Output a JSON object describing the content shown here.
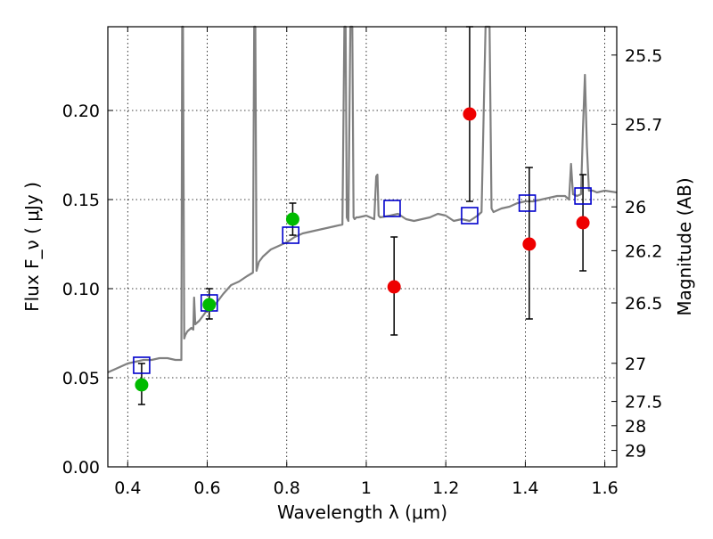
{
  "chart_data": {
    "type": "scatter",
    "xlabel": "Wavelength  λ (μm)",
    "ylabel": "Flux  F_ν  ( μJy )",
    "ylabel_right": "Magnitude (AB)",
    "xlim": [
      0.35,
      1.63
    ],
    "ylim": [
      0.0,
      0.247
    ],
    "grid": true,
    "xticks": [
      0.4,
      0.6,
      0.8,
      1.0,
      1.2,
      1.4,
      1.6
    ],
    "xtick_labels": [
      "0.4",
      "0.6",
      "0.8",
      "1",
      "1.2",
      "1.4",
      "1.6"
    ],
    "yticks": [
      0.0,
      0.05,
      0.1,
      0.15,
      0.2
    ],
    "ytick_labels": [
      "0.00",
      "0.05",
      "0.10",
      "0.15",
      "0.20"
    ],
    "right_ticks": [
      {
        "label": "25.5",
        "flux": 0.2311
      },
      {
        "label": "25.7",
        "flux": 0.1923
      },
      {
        "label": "26",
        "flux": 0.1459
      },
      {
        "label": "26.2",
        "flux": 0.1213
      },
      {
        "label": "26.5",
        "flux": 0.092
      },
      {
        "label": "27",
        "flux": 0.0581
      },
      {
        "label": "27.5",
        "flux": 0.0367
      },
      {
        "label": "28",
        "flux": 0.0231
      },
      {
        "label": "29",
        "flux": 0.0092
      }
    ],
    "colors": {
      "spectrum": "#808080",
      "model": "#0000cc",
      "green": "#00bb00",
      "red": "#ee0000",
      "errorbar": "#000000"
    },
    "series": [
      {
        "kind": "spectrum",
        "x": [
          0.35,
          0.37,
          0.39,
          0.4,
          0.42,
          0.44,
          0.46,
          0.48,
          0.5,
          0.52,
          0.53,
          0.535,
          0.537,
          0.539,
          0.542,
          0.545,
          0.55,
          0.56,
          0.565,
          0.567,
          0.57,
          0.58,
          0.59,
          0.6,
          0.62,
          0.64,
          0.66,
          0.68,
          0.7,
          0.715,
          0.718,
          0.721,
          0.724,
          0.73,
          0.74,
          0.76,
          0.78,
          0.8,
          0.82,
          0.84,
          0.86,
          0.88,
          0.9,
          0.92,
          0.94,
          0.945,
          0.948,
          0.951,
          0.955,
          0.96,
          0.965,
          0.968,
          0.971,
          0.975,
          0.98,
          1.0,
          1.02,
          1.025,
          1.028,
          1.031,
          1.035,
          1.06,
          1.08,
          1.1,
          1.12,
          1.14,
          1.16,
          1.18,
          1.2,
          1.22,
          1.24,
          1.26,
          1.28,
          1.29,
          1.3,
          1.305,
          1.31,
          1.315,
          1.32,
          1.34,
          1.36,
          1.38,
          1.4,
          1.42,
          1.44,
          1.46,
          1.48,
          1.5,
          1.51,
          1.515,
          1.52,
          1.53,
          1.54,
          1.545,
          1.55,
          1.555,
          1.56,
          1.57,
          1.58,
          1.6,
          1.63
        ],
        "y": [
          0.053,
          0.055,
          0.057,
          0.058,
          0.059,
          0.06,
          0.06,
          0.061,
          0.061,
          0.06,
          0.06,
          0.06,
          0.25,
          0.25,
          0.072,
          0.074,
          0.076,
          0.078,
          0.077,
          0.095,
          0.08,
          0.082,
          0.085,
          0.088,
          0.091,
          0.097,
          0.102,
          0.104,
          0.107,
          0.109,
          0.25,
          0.25,
          0.11,
          0.115,
          0.118,
          0.122,
          0.124,
          0.126,
          0.129,
          0.131,
          0.132,
          0.133,
          0.134,
          0.135,
          0.136,
          0.25,
          0.25,
          0.14,
          0.138,
          0.25,
          0.25,
          0.14,
          0.139,
          0.14,
          0.14,
          0.141,
          0.139,
          0.163,
          0.164,
          0.141,
          0.14,
          0.141,
          0.142,
          0.139,
          0.138,
          0.139,
          0.14,
          0.142,
          0.141,
          0.138,
          0.139,
          0.138,
          0.141,
          0.143,
          0.25,
          0.25,
          0.25,
          0.145,
          0.143,
          0.145,
          0.146,
          0.148,
          0.149,
          0.149,
          0.15,
          0.151,
          0.152,
          0.152,
          0.15,
          0.17,
          0.153,
          0.152,
          0.153,
          0.19,
          0.22,
          0.18,
          0.155,
          0.155,
          0.154,
          0.155,
          0.154
        ]
      },
      {
        "kind": "model",
        "name": "",
        "x": [
          0.435,
          0.605,
          0.81,
          1.065,
          1.26,
          1.405,
          1.545
        ],
        "y": [
          0.057,
          0.092,
          0.13,
          0.145,
          0.141,
          0.148,
          0.152
        ]
      },
      {
        "kind": "detection",
        "name": "",
        "x": [
          0.435,
          0.605,
          0.815
        ],
        "y": [
          0.046,
          0.091,
          0.139
        ],
        "yerr_low": [
          0.035,
          0.083,
          0.13
        ],
        "yerr_high": [
          0.058,
          0.1,
          0.148
        ]
      },
      {
        "kind": "upper",
        "name": "",
        "x": [
          1.07,
          1.26,
          1.41,
          1.545
        ],
        "y": [
          0.101,
          0.198,
          0.125,
          0.137
        ],
        "yerr_low": [
          0.074,
          0.149,
          0.083,
          0.11
        ],
        "yerr_high": [
          0.129,
          0.247,
          0.168,
          0.164
        ]
      }
    ]
  }
}
